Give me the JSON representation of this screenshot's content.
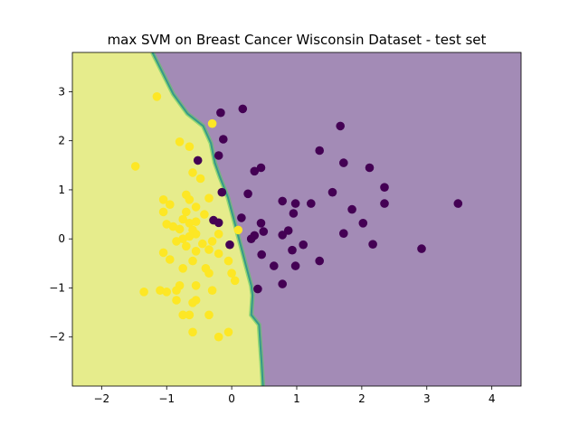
{
  "chart_data": {
    "type": "scatter",
    "title": "max SVM on Breast Cancer Wisconsin Dataset - test set",
    "xlabel": "",
    "ylabel": "",
    "xlim": [
      -2.45,
      4.45
    ],
    "ylim": [
      -3.0,
      3.8
    ],
    "x_ticks": [
      -2,
      -1,
      0,
      1,
      2,
      3,
      4
    ],
    "y_ticks": [
      -2,
      -1,
      0,
      1,
      2,
      3
    ],
    "grid": false,
    "legend": "none",
    "colors": {
      "class_0_point": "#440154",
      "class_1_point": "#fde725",
      "class_0_region": "#a38bb6",
      "class_1_region": "#e6ec8c",
      "boundary_inner": "#21918c",
      "boundary_outer": "#5ec962"
    },
    "decision_boundary": [
      [
        0.48,
        -3.0
      ],
      [
        0.46,
        -2.55
      ],
      [
        0.44,
        -2.15
      ],
      [
        0.42,
        -1.75
      ],
      [
        0.3,
        -1.55
      ],
      [
        0.32,
        -1.15
      ],
      [
        0.3,
        -0.95
      ],
      [
        0.22,
        -0.55
      ],
      [
        0.14,
        -0.15
      ],
      [
        0.08,
        0.15
      ],
      [
        0.02,
        0.45
      ],
      [
        -0.06,
        0.85
      ],
      [
        -0.18,
        1.25
      ],
      [
        -0.26,
        1.55
      ],
      [
        -0.32,
        1.95
      ],
      [
        -0.44,
        2.3
      ],
      [
        -0.68,
        2.55
      ],
      [
        -0.9,
        2.95
      ],
      [
        -1.05,
        3.35
      ],
      [
        -1.22,
        3.8
      ]
    ],
    "series": [
      {
        "class": 0,
        "points": [
          [
            0.17,
            2.65
          ],
          [
            -0.17,
            2.57
          ],
          [
            1.67,
            2.3
          ],
          [
            -0.13,
            2.03
          ],
          [
            1.35,
            1.8
          ],
          [
            -0.2,
            1.7
          ],
          [
            -0.52,
            1.6
          ],
          [
            1.72,
            1.55
          ],
          [
            0.45,
            1.45
          ],
          [
            0.35,
            1.38
          ],
          [
            2.12,
            1.45
          ],
          [
            2.35,
            1.05
          ],
          [
            1.55,
            0.95
          ],
          [
            0.25,
            0.92
          ],
          [
            -0.15,
            0.95
          ],
          [
            0.78,
            0.77
          ],
          [
            0.98,
            0.72
          ],
          [
            1.22,
            0.72
          ],
          [
            2.35,
            0.72
          ],
          [
            3.48,
            0.72
          ],
          [
            1.85,
            0.6
          ],
          [
            0.95,
            0.52
          ],
          [
            0.15,
            0.43
          ],
          [
            0.45,
            0.32
          ],
          [
            2.02,
            0.32
          ],
          [
            -0.28,
            0.38
          ],
          [
            -0.2,
            0.33
          ],
          [
            0.87,
            0.17
          ],
          [
            0.49,
            0.15
          ],
          [
            0.78,
            0.08
          ],
          [
            0.35,
            0.07
          ],
          [
            0.3,
            0.0
          ],
          [
            1.72,
            0.11
          ],
          [
            -0.03,
            -0.12
          ],
          [
            1.1,
            -0.12
          ],
          [
            2.17,
            -0.11
          ],
          [
            2.92,
            -0.2
          ],
          [
            0.93,
            -0.23
          ],
          [
            0.46,
            -0.32
          ],
          [
            0.65,
            -0.55
          ],
          [
            0.98,
            -0.55
          ],
          [
            1.35,
            -0.45
          ],
          [
            0.78,
            -0.92
          ],
          [
            0.4,
            -1.02
          ]
        ]
      },
      {
        "class": 1,
        "points": [
          [
            -1.15,
            2.9
          ],
          [
            -0.3,
            2.35
          ],
          [
            -0.8,
            1.98
          ],
          [
            -0.65,
            1.88
          ],
          [
            -0.6,
            1.35
          ],
          [
            -1.48,
            1.48
          ],
          [
            -0.48,
            1.23
          ],
          [
            -0.35,
            0.83
          ],
          [
            -0.7,
            0.9
          ],
          [
            -0.65,
            0.8
          ],
          [
            -1.05,
            0.8
          ],
          [
            -0.95,
            0.7
          ],
          [
            -1.05,
            0.55
          ],
          [
            -0.55,
            0.65
          ],
          [
            -0.7,
            0.55
          ],
          [
            -0.42,
            0.5
          ],
          [
            -0.75,
            0.4
          ],
          [
            -0.65,
            0.32
          ],
          [
            -0.55,
            0.35
          ],
          [
            -0.6,
            0.18
          ],
          [
            -1.0,
            0.3
          ],
          [
            -0.9,
            0.25
          ],
          [
            -0.8,
            0.2
          ],
          [
            -0.55,
            0.1
          ],
          [
            -0.65,
            0.05
          ],
          [
            -0.75,
            0.0
          ],
          [
            -0.85,
            -0.05
          ],
          [
            -0.45,
            -0.1
          ],
          [
            -0.3,
            -0.05
          ],
          [
            -0.2,
            0.1
          ],
          [
            0.1,
            0.18
          ],
          [
            -0.7,
            -0.15
          ],
          [
            -0.55,
            -0.25
          ],
          [
            -0.35,
            -0.22
          ],
          [
            -1.05,
            -0.28
          ],
          [
            -0.95,
            -0.42
          ],
          [
            -0.6,
            -0.45
          ],
          [
            -0.75,
            -0.6
          ],
          [
            -0.4,
            -0.6
          ],
          [
            -0.05,
            -0.45
          ],
          [
            -0.2,
            -0.3
          ],
          [
            -0.35,
            -0.7
          ],
          [
            0.0,
            -0.7
          ],
          [
            0.05,
            -0.85
          ],
          [
            -0.8,
            -0.95
          ],
          [
            -0.55,
            -0.95
          ],
          [
            -0.3,
            -1.05
          ],
          [
            -0.85,
            -1.05
          ],
          [
            -1.1,
            -1.05
          ],
          [
            -1.0,
            -1.08
          ],
          [
            -1.35,
            -1.08
          ],
          [
            -0.55,
            -1.25
          ],
          [
            -0.85,
            -1.25
          ],
          [
            -0.6,
            -1.3
          ],
          [
            -0.75,
            -1.55
          ],
          [
            -0.65,
            -1.55
          ],
          [
            -0.35,
            -1.55
          ],
          [
            -0.6,
            -1.9
          ],
          [
            -0.2,
            -2.0
          ],
          [
            -0.05,
            -1.9
          ]
        ]
      }
    ]
  }
}
